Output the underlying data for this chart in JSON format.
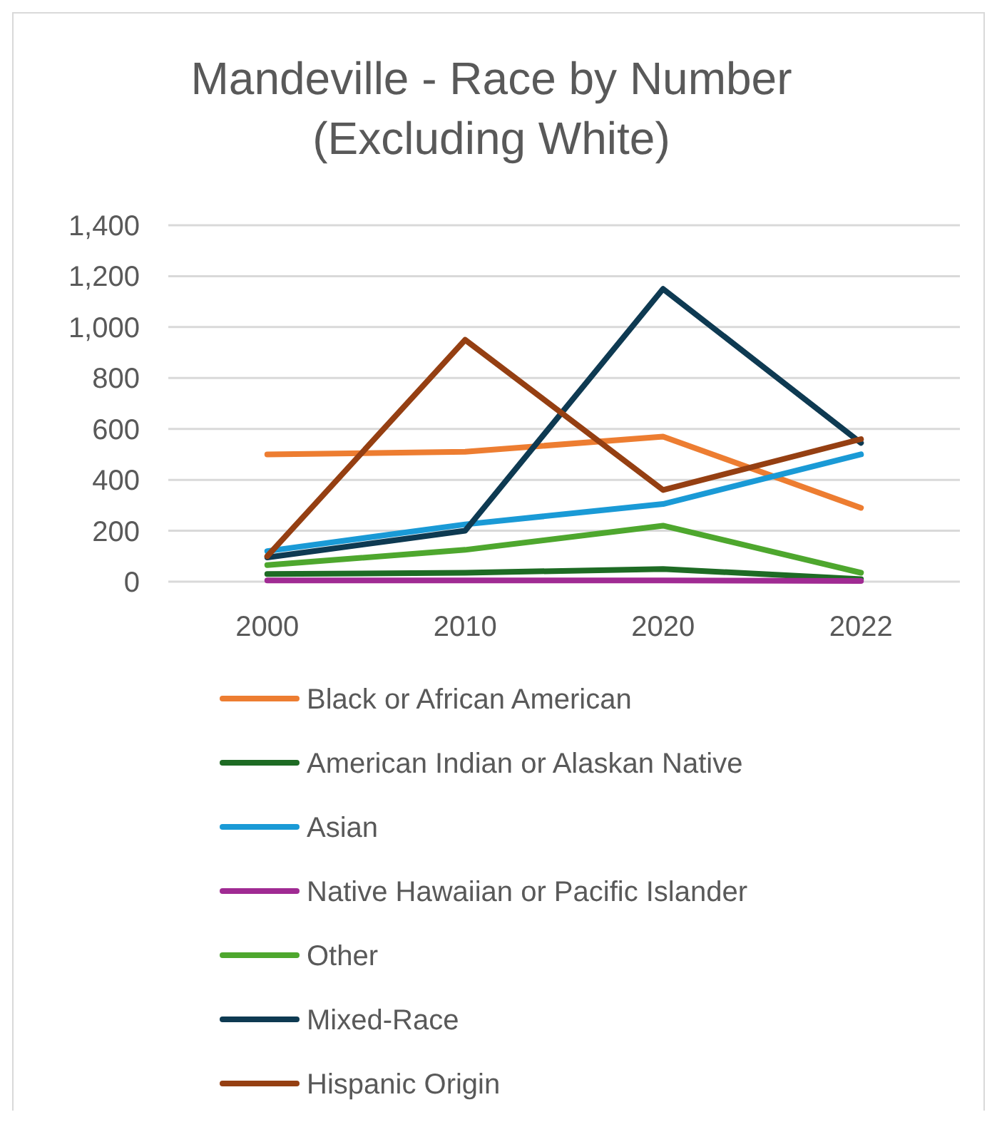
{
  "chart_data": {
    "type": "line",
    "title": "Mandeville - Race by Number\n(Excluding White)",
    "categories": [
      "2000",
      "2010",
      "2020",
      "2022"
    ],
    "ylim": [
      0,
      1400
    ],
    "yticks": [
      {
        "value": 0,
        "label": "0"
      },
      {
        "value": 200,
        "label": "200"
      },
      {
        "value": 400,
        "label": "400"
      },
      {
        "value": 600,
        "label": "600"
      },
      {
        "value": 800,
        "label": "800"
      },
      {
        "value": 1000,
        "label": "1,000"
      },
      {
        "value": 1200,
        "label": "1,200"
      },
      {
        "value": 1400,
        "label": "1,400"
      }
    ],
    "grid": "y",
    "legend": "bottom",
    "marker": "none",
    "line_style": "solid",
    "series": [
      {
        "name": "Black or African American",
        "color": "#ed7d31",
        "values": [
          500,
          510,
          570,
          290
        ]
      },
      {
        "name": "American Indian or Alaskan Native",
        "color": "#1e6b24",
        "values": [
          30,
          35,
          50,
          10
        ]
      },
      {
        "name": "Asian",
        "color": "#1a9ad6",
        "values": [
          120,
          225,
          305,
          500
        ]
      },
      {
        "name": "Native Hawaiian or Pacific Islander",
        "color": "#a02b93",
        "values": [
          5,
          5,
          5,
          3
        ]
      },
      {
        "name": "Other",
        "color": "#4ea72e",
        "values": [
          65,
          125,
          220,
          35
        ]
      },
      {
        "name": "Mixed-Race",
        "color": "#0e3a52",
        "values": [
          95,
          200,
          1150,
          545
        ]
      },
      {
        "name": "Hispanic Origin",
        "color": "#953f12",
        "values": [
          100,
          950,
          360,
          560
        ]
      }
    ]
  }
}
